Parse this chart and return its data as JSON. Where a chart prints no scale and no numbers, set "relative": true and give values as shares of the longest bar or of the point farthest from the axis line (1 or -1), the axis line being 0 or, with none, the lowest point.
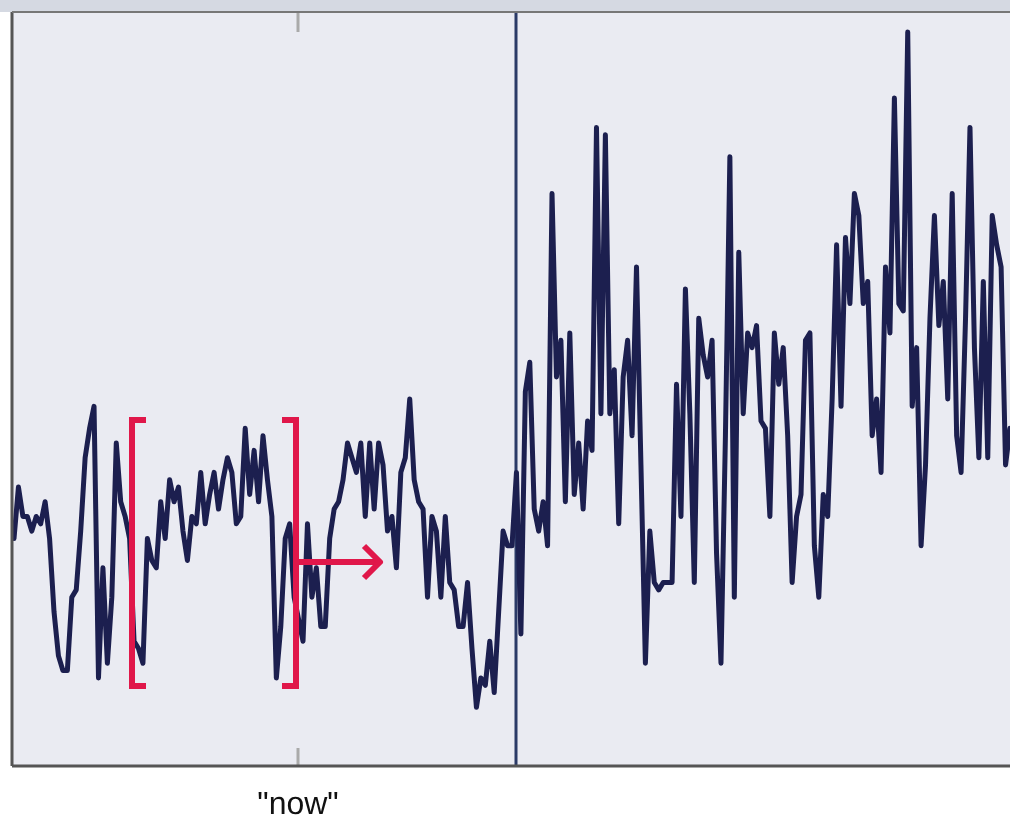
{
  "chart_data": {
    "type": "line",
    "relative": true,
    "annotations": [
      "\"now\""
    ],
    "line_style": "solid",
    "marker": "none",
    "categories": [
      null,
      null,
      null,
      null,
      null,
      null,
      null,
      null,
      null,
      null,
      null,
      null,
      null,
      null,
      null,
      null,
      null,
      null,
      null,
      null,
      null,
      null,
      null,
      null,
      null,
      null,
      null,
      null,
      null,
      null,
      null,
      null,
      null,
      null,
      null,
      null,
      null,
      null,
      null,
      null,
      null,
      null,
      null,
      null,
      null,
      null,
      null,
      null,
      null,
      null,
      null,
      null,
      null,
      null,
      null,
      null,
      null,
      null,
      null,
      null,
      null,
      null,
      null,
      null,
      null,
      null,
      null,
      null,
      null,
      null,
      null,
      null,
      null,
      null,
      null,
      null,
      null,
      null,
      null,
      null,
      null,
      null,
      null,
      null,
      null,
      null,
      null,
      null,
      null,
      null,
      null,
      null,
      null,
      null,
      null,
      null,
      null,
      null,
      null,
      null,
      null,
      null,
      null,
      null,
      null,
      null,
      null,
      null,
      null,
      null,
      null,
      null,
      null,
      null,
      null,
      null,
      null,
      null,
      null,
      null,
      null,
      null,
      null,
      null,
      null,
      null,
      null,
      null,
      null,
      null,
      null,
      null,
      null,
      null,
      null,
      null,
      null,
      null,
      null,
      null,
      null,
      null,
      null,
      null,
      null,
      null,
      null,
      null,
      null,
      null,
      null,
      null,
      null,
      null,
      null,
      null,
      null,
      null,
      null,
      null,
      null,
      null,
      null,
      null,
      null,
      null,
      null,
      null,
      null,
      null,
      null,
      null,
      null,
      null,
      null,
      null,
      null,
      null,
      null,
      null,
      null,
      null,
      null,
      null,
      null,
      null,
      null,
      null,
      null,
      null,
      null,
      null,
      null,
      null,
      null,
      null,
      null,
      null,
      null,
      null,
      null,
      null,
      null,
      null,
      null,
      null,
      null,
      null,
      null,
      null,
      null,
      null,
      null,
      null,
      null,
      null,
      null,
      null,
      null,
      null,
      null,
      null,
      null,
      null,
      null
    ],
    "series": [
      {
        "color": "#1c1f4f",
        "values": [
          0.31,
          0.38,
          0.34,
          0.34,
          0.32,
          0.34,
          0.33,
          0.36,
          0.31,
          0.21,
          0.15,
          0.13,
          0.13,
          0.23,
          0.24,
          0.32,
          0.42,
          0.46,
          0.49,
          0.12,
          0.27,
          0.14,
          0.23,
          0.44,
          0.36,
          0.34,
          0.31,
          0.17,
          0.16,
          0.14,
          0.31,
          0.28,
          0.27,
          0.36,
          0.31,
          0.39,
          0.36,
          0.38,
          0.32,
          0.28,
          0.34,
          0.33,
          0.4,
          0.33,
          0.37,
          0.4,
          0.35,
          0.39,
          0.42,
          0.4,
          0.33,
          0.34,
          0.46,
          0.37,
          0.43,
          0.36,
          0.45,
          0.39,
          0.34,
          0.12,
          0.19,
          0.31,
          0.33,
          0.23,
          0.2,
          0.17,
          0.33,
          0.23,
          0.27,
          0.19,
          0.19,
          0.31,
          0.35,
          0.36,
          0.39,
          0.44,
          0.42,
          0.4,
          0.44,
          0.34,
          0.44,
          0.35,
          0.44,
          0.41,
          0.32,
          0.34,
          0.27,
          0.4,
          0.42,
          0.5,
          0.39,
          0.36,
          0.35,
          0.23,
          0.34,
          0.32,
          0.23,
          0.34,
          0.25,
          0.24,
          0.19,
          0.19,
          0.25,
          0.16,
          0.08,
          0.12,
          0.11,
          0.17,
          0.1,
          0.21,
          0.32,
          0.3,
          0.3,
          0.4,
          0.18,
          0.51,
          0.55,
          0.35,
          0.32,
          0.36,
          0.3,
          0.78,
          0.53,
          0.58,
          0.36,
          0.59,
          0.37,
          0.44,
          0.35,
          0.47,
          0.43,
          0.87,
          0.48,
          0.86,
          0.48,
          0.54,
          0.33,
          0.53,
          0.58,
          0.45,
          0.68,
          0.41,
          0.14,
          0.32,
          0.25,
          0.24,
          0.25,
          0.25,
          0.25,
          0.52,
          0.34,
          0.65,
          0.48,
          0.25,
          0.61,
          0.56,
          0.53,
          0.58,
          0.29,
          0.14,
          0.45,
          0.83,
          0.23,
          0.7,
          0.48,
          0.59,
          0.57,
          0.6,
          0.47,
          0.46,
          0.34,
          0.59,
          0.52,
          0.57,
          0.45,
          0.25,
          0.34,
          0.37,
          0.58,
          0.59,
          0.3,
          0.23,
          0.37,
          0.34,
          0.5,
          0.71,
          0.49,
          0.72,
          0.63,
          0.78,
          0.75,
          0.63,
          0.66,
          0.45,
          0.5,
          0.4,
          0.68,
          0.59,
          0.91,
          0.63,
          0.62,
          1.0,
          0.49,
          0.57,
          0.3,
          0.41,
          0.61,
          0.75,
          0.6,
          0.66,
          0.5,
          0.78,
          0.45,
          0.4,
          0.61,
          0.87,
          0.57,
          0.42,
          0.66,
          0.42,
          0.75,
          0.71,
          0.68,
          0.41,
          0.46
        ]
      }
    ]
  }
}
